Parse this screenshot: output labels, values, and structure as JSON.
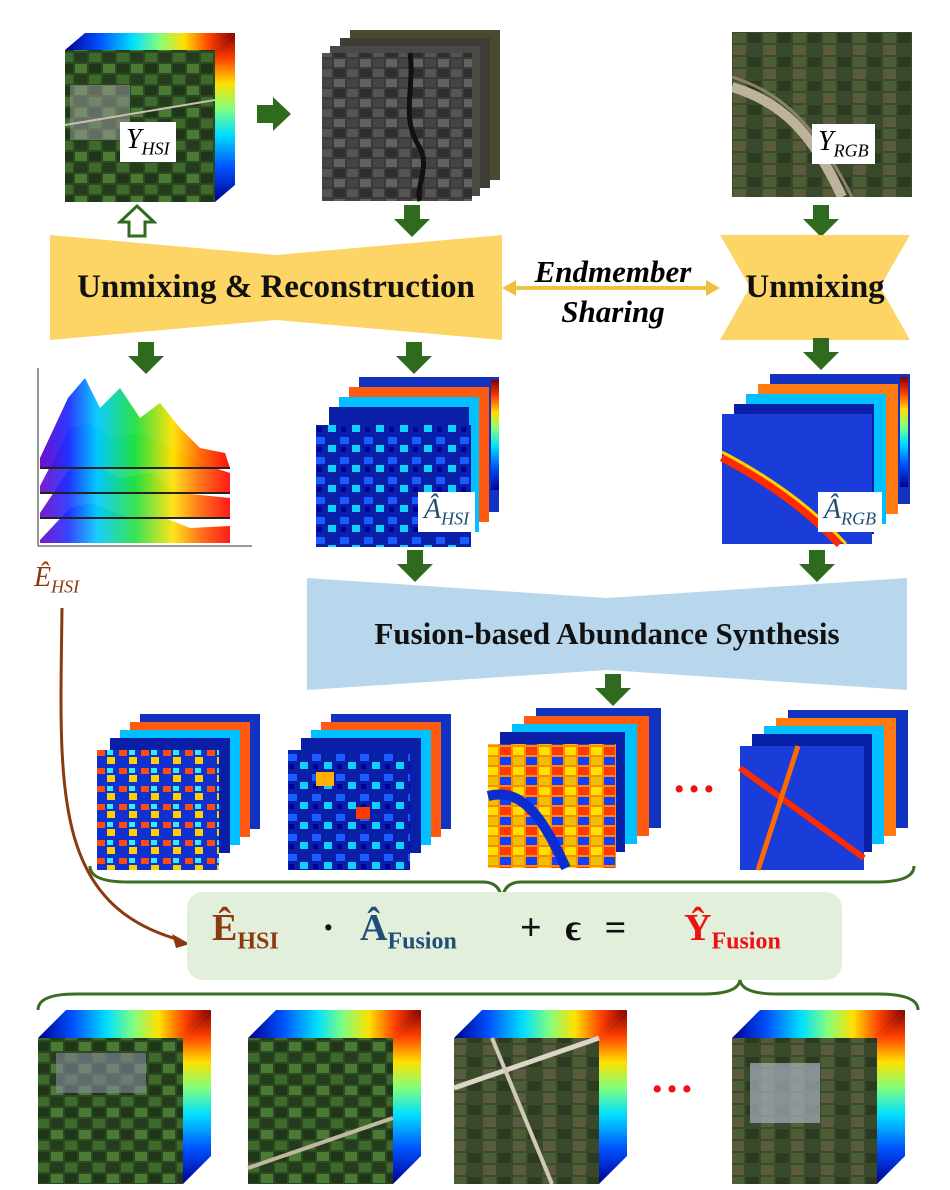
{
  "inputs": {
    "hsi_label": {
      "base": "Y",
      "sub": "HSI"
    },
    "rgb_label": {
      "base": "Y",
      "sub": "RGB"
    }
  },
  "stages": {
    "left_block": "Unmixing & Reconstruction",
    "right_block": "Unmixing",
    "sharing": [
      "Endmember",
      "Sharing"
    ],
    "fusion_block": "Fusion-based Abundance Synthesis"
  },
  "outputs": {
    "endmember_label": {
      "base": "Ê",
      "sub": "HSI"
    },
    "abundance_hsi_label": {
      "base": "Â",
      "sub": "HSI"
    },
    "abundance_rgb_label": {
      "base": "Â",
      "sub": "RGB"
    }
  },
  "equation": {
    "e_base": "Ê",
    "e_sub": "HSI",
    "dot": "·",
    "a_base": "Â",
    "a_sub": "Fusion",
    "plus": "+ ϵ =",
    "y_base": "Ŷ",
    "y_sub": "Fusion"
  },
  "ellipsis": "…",
  "colors": {
    "arrow_green": "#2f6b1f",
    "banner_yellow": "#fcd566",
    "banner_blue": "#b9d7ec",
    "eq_box": "#e2efda",
    "brace_green": "#3b6e24",
    "endmember_brown": "#8b3a0f",
    "abundance_blue": "#1f4e79",
    "fused_red": "#ee1111"
  }
}
